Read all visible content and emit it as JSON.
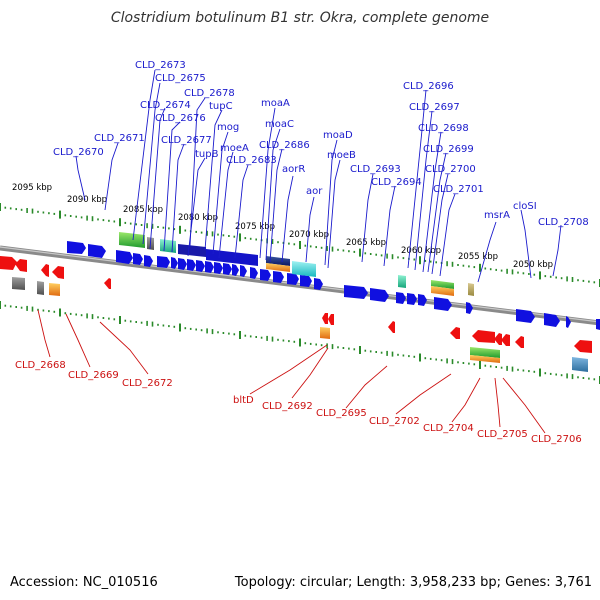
{
  "title": "Clostridium botulinum B1 str. Okra, complete genome",
  "footer": {
    "accession": "Accession: NC_010516",
    "topology": "Topology: circular; Length: 3,958,233 bp; Genes: 3,761"
  },
  "colors": {
    "forward_gene": "#1010e0",
    "reverse_gene": "#ee1010",
    "forward_label": "#1a1acc",
    "reverse_label": "#cc1111",
    "backbone": "#8a8a8a",
    "tick": "#2a8a2a"
  },
  "scale_labels": [
    "2095 kbp",
    "2090 kbp",
    "2085 kbp",
    "2080 kbp",
    "2075 kbp",
    "2070 kbp",
    "2065 kbp",
    "2060 kbp",
    "2055 kbp",
    "2050 kbp"
  ],
  "forward_labels": [
    "CLD_2673",
    "CLD_2675",
    "CLD_2678",
    "CLD_2674",
    "tupC",
    "CLD_2676",
    "moaA",
    "mog",
    "moaC",
    "CLD_2671",
    "CLD_2677",
    "CLD_2686",
    "moaD",
    "CLD_2670",
    "tupB",
    "moeA",
    "CLD_2683",
    "moeB",
    "aorR",
    "aor",
    "CLD_2696",
    "CLD_2697",
    "CLD_2698",
    "CLD_2699",
    "CLD_2700",
    "CLD_2701",
    "CLD_2693",
    "CLD_2694",
    "cloSI",
    "msrA",
    "CLD_2708"
  ],
  "reverse_labels": [
    "CLD_2668",
    "CLD_2669",
    "CLD_2672",
    "bltD",
    "CLD_2692",
    "CLD_2695",
    "CLD_2702",
    "CLD_2704",
    "CLD_2705",
    "CLD_2706"
  ]
}
